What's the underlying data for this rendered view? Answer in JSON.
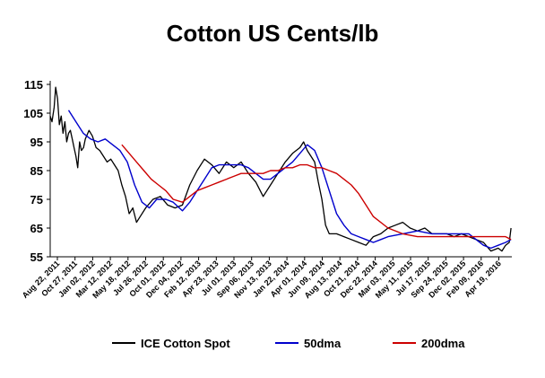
{
  "chart_data": {
    "type": "line",
    "title": "Cotton  US Cents/lb",
    "xlabel": "",
    "ylabel": "",
    "ylim": [
      55,
      115
    ],
    "yticks": [
      "115",
      "105",
      "95",
      "85",
      "75",
      "65",
      "55"
    ],
    "grid": false,
    "legend_position": "bottom",
    "x_range": [
      "Aug 22, 2011",
      "Jun 2016"
    ],
    "xticks": [
      "Aug 22, 2011",
      "Oct 27, 2011",
      "Jan 02, 2012",
      "Mar 12, 2012",
      "May 18, 2012",
      "Jul 26, 2012",
      "Oct 01, 2012",
      "Dec 04, 2012",
      "Feb 12, 2013",
      "Apr 23, 2013",
      "Jul 01, 2013",
      "Sep 06, 2013",
      "Nov 13, 2013",
      "Jan 22, 2014",
      "Apr 01, 2014",
      "Jun 09, 2014",
      "Aug 13, 2014",
      "Oct 21, 2014",
      "Dec 22, 2014",
      "Mar 03, 2015",
      "May 11, 2015",
      "Jul 17, 2015",
      "Sep 24, 2015",
      "Dec 02, 2015",
      "Feb 09, 2016",
      "Apr 19, 2016"
    ],
    "series": [
      {
        "name": "ICE Cotton Spot",
        "color": "#000000",
        "x": [
          "2011-08-22",
          "2011-08-29",
          "2011-09-06",
          "2011-09-12",
          "2011-09-19",
          "2011-09-26",
          "2011-10-03",
          "2011-10-10",
          "2011-10-17",
          "2011-10-24",
          "2011-10-31",
          "2011-11-07",
          "2011-11-14",
          "2011-11-21",
          "2011-11-28",
          "2011-12-05",
          "2011-12-12",
          "2011-12-19",
          "2011-12-27",
          "2012-01-03",
          "2012-01-17",
          "2012-01-30",
          "2012-02-13",
          "2012-02-27",
          "2012-03-12",
          "2012-03-26",
          "2012-04-09",
          "2012-04-23",
          "2012-05-07",
          "2012-05-21",
          "2012-06-04",
          "2012-06-18",
          "2012-07-02",
          "2012-07-16",
          "2012-07-30",
          "2012-08-20",
          "2012-09-17",
          "2012-10-15",
          "2012-11-12",
          "2012-12-10",
          "2013-01-07",
          "2013-02-04",
          "2013-03-04",
          "2013-04-01",
          "2013-04-29",
          "2013-05-27",
          "2013-06-24",
          "2013-07-22",
          "2013-08-19",
          "2013-09-16",
          "2013-10-14",
          "2013-11-11",
          "2013-12-09",
          "2014-01-06",
          "2014-02-03",
          "2014-03-03",
          "2014-03-31",
          "2014-04-14",
          "2014-04-28",
          "2014-05-12",
          "2014-05-26",
          "2014-06-09",
          "2014-06-23",
          "2014-07-07",
          "2014-07-21",
          "2014-08-04",
          "2014-08-18",
          "2014-09-15",
          "2014-10-13",
          "2014-11-10",
          "2014-12-08",
          "2015-01-05",
          "2015-02-02",
          "2015-03-02",
          "2015-03-30",
          "2015-04-27",
          "2015-05-25",
          "2015-06-22",
          "2015-07-20",
          "2015-08-17",
          "2015-09-14",
          "2015-10-12",
          "2015-11-09",
          "2015-12-07",
          "2016-01-04",
          "2016-02-01",
          "2016-02-29",
          "2016-03-28",
          "2016-04-25",
          "2016-05-09",
          "2016-05-23",
          "2016-06-06",
          "2016-06-13"
        ],
        "values": [
          104,
          102,
          107,
          114,
          110,
          101,
          104,
          98,
          102,
          95,
          98,
          99,
          96,
          93,
          90,
          86,
          95,
          92,
          93,
          96,
          99,
          97,
          93,
          92,
          90,
          88,
          89,
          87,
          85,
          80,
          76,
          70,
          72,
          67,
          69,
          72,
          75,
          76,
          73,
          72,
          73,
          80,
          85,
          89,
          87,
          84,
          88,
          86,
          88,
          84,
          81,
          76,
          80,
          84,
          88,
          91,
          93,
          95,
          92,
          90,
          88,
          81,
          75,
          66,
          63,
          63,
          63,
          62,
          61,
          60,
          59,
          62,
          63,
          65,
          66,
          67,
          65,
          64,
          65,
          63,
          63,
          63,
          62,
          63,
          62,
          61,
          60,
          57,
          58,
          57,
          59,
          60,
          65
        ]
      },
      {
        "name": "50dma",
        "color": "#0000CC",
        "x": [
          "2011-10-31",
          "2011-11-28",
          "2011-12-26",
          "2012-01-23",
          "2012-02-20",
          "2012-03-19",
          "2012-04-16",
          "2012-05-14",
          "2012-06-11",
          "2012-07-09",
          "2012-08-06",
          "2012-09-03",
          "2012-10-01",
          "2012-11-05",
          "2012-12-03",
          "2013-01-07",
          "2013-02-04",
          "2013-03-04",
          "2013-04-01",
          "2013-04-29",
          "2013-05-27",
          "2013-06-24",
          "2013-07-22",
          "2013-08-19",
          "2013-09-16",
          "2013-10-14",
          "2013-11-11",
          "2013-12-09",
          "2014-01-06",
          "2014-02-03",
          "2014-03-03",
          "2014-03-31",
          "2014-04-28",
          "2014-05-26",
          "2014-06-23",
          "2014-07-21",
          "2014-08-18",
          "2014-09-15",
          "2014-10-13",
          "2014-11-10",
          "2014-12-08",
          "2015-01-05",
          "2015-02-02",
          "2015-03-02",
          "2015-04-27",
          "2015-06-22",
          "2015-08-17",
          "2015-10-12",
          "2015-12-07",
          "2016-01-04",
          "2016-02-01",
          "2016-02-29",
          "2016-03-28",
          "2016-04-25",
          "2016-05-23",
          "2016-06-13"
        ],
        "values": [
          106,
          102,
          98,
          96,
          95,
          96,
          94,
          92,
          88,
          80,
          74,
          72,
          75,
          75,
          74,
          71,
          74,
          78,
          82,
          86,
          87,
          87,
          87,
          87,
          86,
          84,
          82,
          82,
          84,
          86,
          88,
          91,
          94,
          92,
          86,
          78,
          70,
          66,
          63,
          62,
          61,
          60,
          61,
          62,
          63,
          64,
          63,
          63,
          63,
          63,
          61,
          59,
          58,
          59,
          60,
          61
        ]
      },
      {
        "name": "200dma",
        "color": "#CC0000",
        "x": [
          "2012-05-21",
          "2012-06-18",
          "2012-07-16",
          "2012-08-13",
          "2012-09-10",
          "2012-10-08",
          "2012-11-05",
          "2012-12-03",
          "2013-01-07",
          "2013-02-04",
          "2013-03-04",
          "2013-04-01",
          "2013-04-29",
          "2013-05-27",
          "2013-06-24",
          "2013-07-22",
          "2013-08-19",
          "2013-09-16",
          "2013-10-14",
          "2013-11-11",
          "2013-12-09",
          "2014-01-06",
          "2014-02-03",
          "2014-03-03",
          "2014-03-31",
          "2014-04-28",
          "2014-05-26",
          "2014-06-23",
          "2014-07-21",
          "2014-08-18",
          "2014-09-15",
          "2014-10-13",
          "2014-11-10",
          "2014-12-08",
          "2015-01-05",
          "2015-03-02",
          "2015-04-27",
          "2015-06-22",
          "2015-08-17",
          "2015-10-12",
          "2015-12-07",
          "2016-01-04",
          "2016-02-01",
          "2016-02-29",
          "2016-03-28",
          "2016-04-25",
          "2016-05-23",
          "2016-06-13"
        ],
        "values": [
          94,
          91,
          88,
          85,
          82,
          80,
          78,
          75,
          74,
          76,
          78,
          79,
          80,
          81,
          82,
          83,
          84,
          84,
          84,
          84,
          85,
          85,
          86,
          86,
          87,
          87,
          86,
          86,
          85,
          84,
          82,
          80,
          77,
          73,
          69,
          65,
          63,
          62,
          62,
          62,
          62,
          62,
          62,
          62,
          62,
          62,
          62,
          61
        ]
      }
    ]
  }
}
